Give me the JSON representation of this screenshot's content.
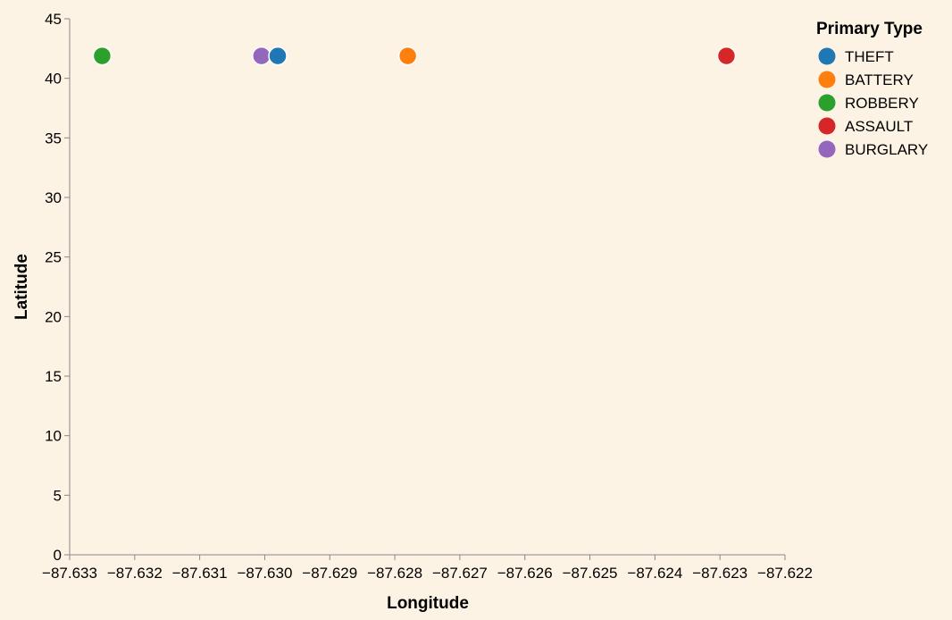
{
  "chart_data": {
    "type": "scatter",
    "xlabel": "Longitude",
    "ylabel": "Latitude",
    "xlim": [
      -87.633,
      -87.622
    ],
    "ylim": [
      0,
      45
    ],
    "x_ticks": [
      "−87.633",
      "−87.632",
      "−87.631",
      "−87.630",
      "−87.629",
      "−87.628",
      "−87.627",
      "−87.626",
      "−87.625",
      "−87.624",
      "−87.623",
      "−87.622"
    ],
    "y_ticks": [
      "0",
      "5",
      "10",
      "15",
      "20",
      "25",
      "30",
      "35",
      "40",
      "45"
    ],
    "grid": false,
    "legend": {
      "title": "Primary Type",
      "placement": "top-right",
      "entries": [
        {
          "label": "THEFT",
          "color": "#1f77b4"
        },
        {
          "label": "BATTERY",
          "color": "#ff7f0e"
        },
        {
          "label": "ROBBERY",
          "color": "#2ca02c"
        },
        {
          "label": "ASSAULT",
          "color": "#d62728"
        },
        {
          "label": "BURGLARY",
          "color": "#9467bd"
        }
      ]
    },
    "points": [
      {
        "x": -87.6325,
        "y": 41.88,
        "category": "ROBBERY",
        "color": "#2ca02c"
      },
      {
        "x": -87.63005,
        "y": 41.88,
        "category": "BURGLARY",
        "color": "#9467bd"
      },
      {
        "x": -87.6298,
        "y": 41.88,
        "category": "THEFT",
        "color": "#1f77b4"
      },
      {
        "x": -87.6278,
        "y": 41.88,
        "category": "BATTERY",
        "color": "#ff7f0e"
      },
      {
        "x": -87.6229,
        "y": 41.88,
        "category": "ASSAULT",
        "color": "#d62728"
      }
    ]
  }
}
